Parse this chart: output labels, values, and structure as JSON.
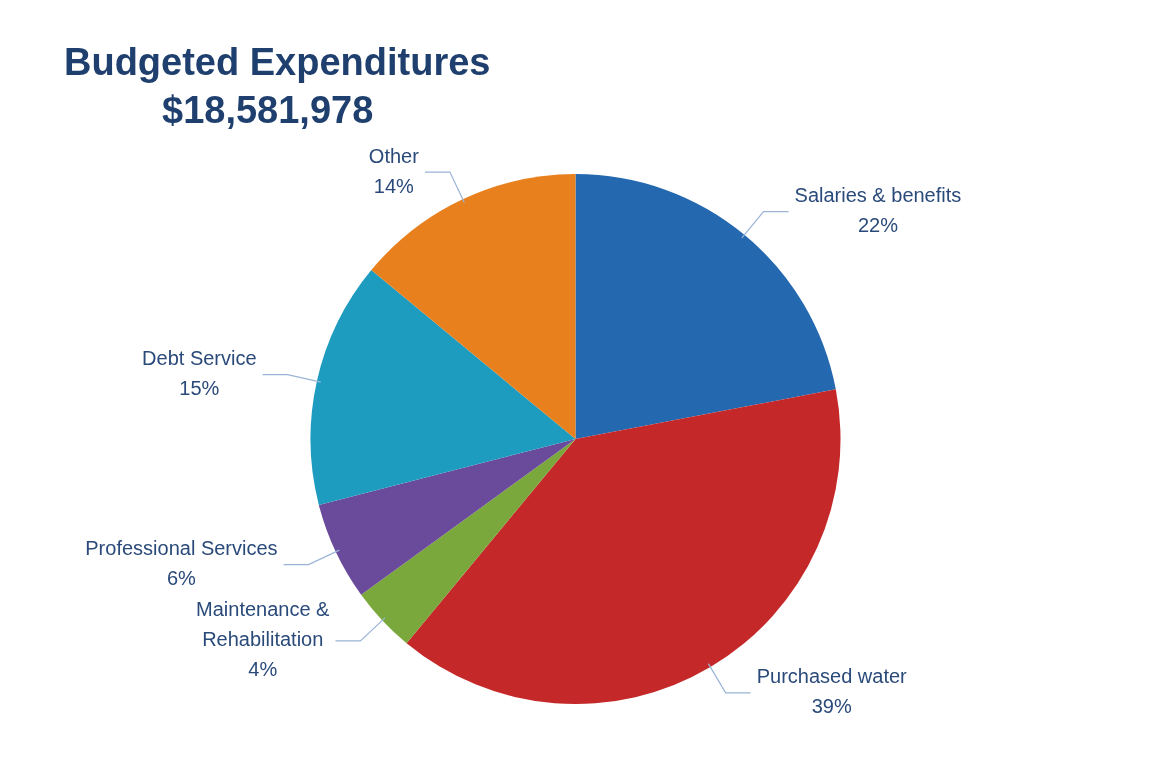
{
  "chart_data": {
    "type": "pie",
    "title": "Budgeted Expenditures",
    "subtitle": "$18,581,978",
    "categories": [
      "Salaries & benefits",
      "Purchased water",
      "Maintenance & Rehabilitation",
      "Professional Services",
      "Debt Service",
      "Other"
    ],
    "values": [
      22,
      39,
      4,
      6,
      15,
      14
    ],
    "colors": [
      "#2468b0",
      "#c42828",
      "#7aa83c",
      "#6a4a9a",
      "#1e9cc0",
      "#e8801e"
    ],
    "value_labels": [
      "22%",
      "39%",
      "4%",
      "6%",
      "15%",
      "14%"
    ],
    "legend": false
  }
}
